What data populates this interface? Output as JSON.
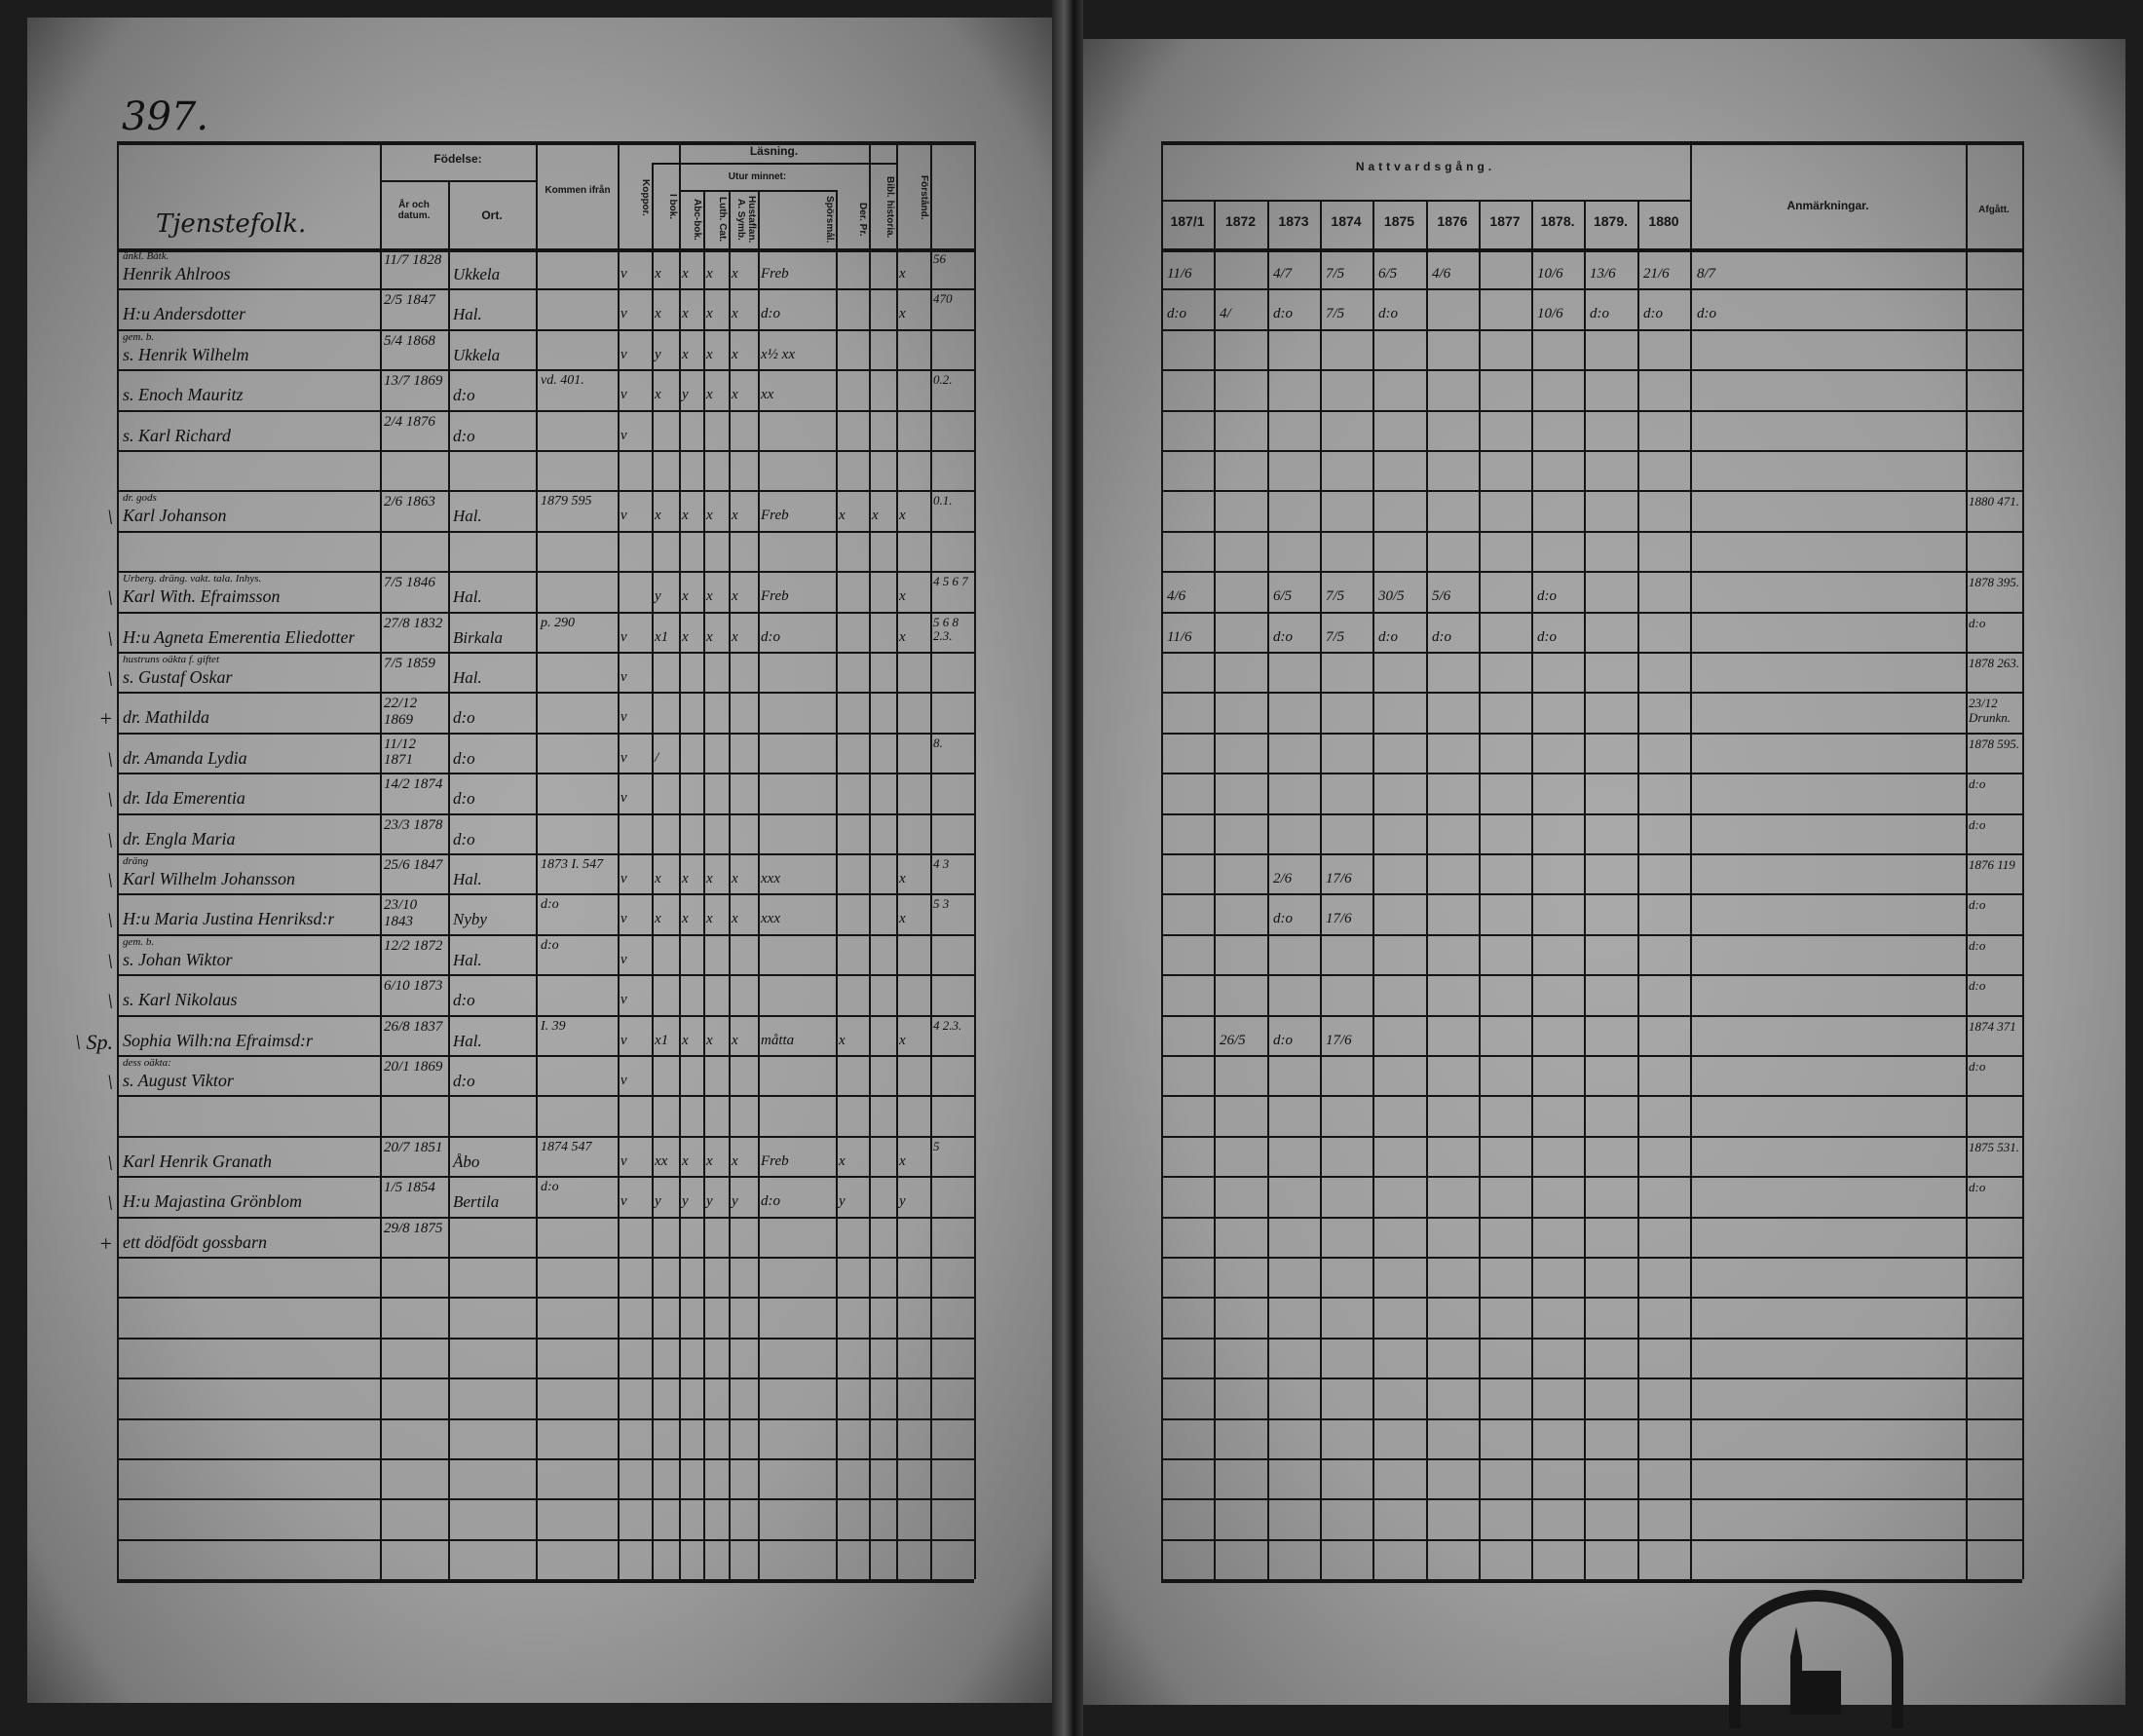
{
  "page_number": "397.",
  "left_headers": {
    "section": "Tjenstefolk.",
    "fodelse": "Födelse:",
    "ar": "År och datum.",
    "ort": "Ort.",
    "kommen_fran": "Kommen ifrån",
    "koppor": "Koppor.",
    "lasning": "Läsning.",
    "i_bok": "I bok.",
    "utur_minnet": "Utur minnet:",
    "abc": "Abc-bok.",
    "luth": "Luth. Cat.",
    "hust": "Hustaflan. A. Symb.",
    "sporsmal": "Spörsmål.",
    "der": "Der. Pr.",
    "bibl": "Bibl. historia.",
    "forstand": "Förstånd."
  },
  "right_headers": {
    "nattvard": "Nattvardsgång.",
    "years": [
      "187/1",
      "1872",
      "1873",
      "1874",
      "1875",
      "1876",
      "1877",
      "1878.",
      "1879.",
      "1880"
    ],
    "anmarkningar": "Anmärkningar.",
    "afgatt": "Afgått."
  },
  "rows": [
    {
      "margin": "",
      "note": "änkl. Båtk.",
      "name": "Henrik Ahlroos",
      "date": "11/7 1828",
      "place": "Ukkela",
      "from": "",
      "marks": [
        "v",
        "x",
        "x",
        "x",
        "x",
        "Freb",
        "",
        "",
        "x",
        "56"
      ],
      "years": [
        "11/6",
        "",
        "4/7",
        "7/5",
        "6/5",
        "4/6",
        "",
        "10/6",
        "13/6",
        "21/6"
      ],
      "anm": "8/7",
      "afgatt": ""
    },
    {
      "margin": "",
      "note": "",
      "name": "H:u Andersdotter",
      "date": "2/5 1847",
      "place": "Hal.",
      "from": "",
      "marks": [
        "v",
        "x",
        "x",
        "x",
        "x",
        "d:o",
        "",
        "",
        "x",
        "470"
      ],
      "years": [
        "d:o",
        "4/",
        "d:o",
        "7/5",
        "d:o",
        "",
        "",
        "10/6",
        "d:o",
        "d:o"
      ],
      "anm": "d:o",
      "afgatt": ""
    },
    {
      "margin": "",
      "note": "gem. b.",
      "name": "s. Henrik Wilhelm",
      "date": "5/4 1868",
      "place": "Ukkela",
      "from": "",
      "marks": [
        "v",
        "y",
        "x",
        "x",
        "x",
        "x½ xx",
        "",
        "",
        "",
        ""
      ],
      "years": [
        "",
        "",
        "",
        "",
        "",
        "",
        "",
        "",
        "",
        ""
      ],
      "anm": "",
      "afgatt": ""
    },
    {
      "margin": "",
      "note": "",
      "name": "s. Enoch Mauritz",
      "date": "13/7 1869",
      "place": "d:o",
      "from": "vd. 401.",
      "marks": [
        "v",
        "x",
        "y",
        "x",
        "x",
        "xx",
        "",
        "",
        "",
        "0.2."
      ],
      "years": [
        "",
        "",
        "",
        "",
        "",
        "",
        "",
        "",
        "",
        ""
      ],
      "anm": "",
      "afgatt": ""
    },
    {
      "margin": "",
      "note": "",
      "name": "s. Karl Richard",
      "date": "2/4 1876",
      "place": "d:o",
      "from": "",
      "marks": [
        "v",
        "",
        "",
        "",
        "",
        "",
        "",
        "",
        "",
        ""
      ],
      "years": [
        "",
        "",
        "",
        "",
        "",
        "",
        "",
        "",
        "",
        ""
      ],
      "anm": "",
      "afgatt": ""
    },
    {},
    {
      "margin": "\\",
      "note": "dr. gods",
      "name": "Karl Johanson",
      "date": "2/6 1863",
      "place": "Hal.",
      "from": "1879 595",
      "marks": [
        "v",
        "x",
        "x",
        "x",
        "x",
        "Freb",
        "x",
        "x",
        "x",
        "0.1."
      ],
      "years": [
        "",
        "",
        "",
        "",
        "",
        "",
        "",
        "",
        "",
        ""
      ],
      "anm": "",
      "afgatt": "1880 471."
    },
    {},
    {
      "margin": "\\",
      "note": "Urberg. dräng. vakt. tala. Inhys.",
      "name": "Karl With. Efraimsson",
      "date": "7/5 1846",
      "place": "Hal.",
      "from": "",
      "marks": [
        "",
        "y",
        "x",
        "x",
        "x",
        "Freb",
        "",
        "",
        "x",
        "4 5 6 7"
      ],
      "years": [
        "4/6",
        "",
        "6/5",
        "7/5",
        "30/5",
        "5/6",
        "",
        "d:o",
        "",
        ""
      ],
      "anm": "",
      "afgatt": "1878 395."
    },
    {
      "margin": "\\",
      "note": "",
      "name": "H:u Agneta Emerentia Eliedotter",
      "date": "27/8 1832",
      "place": "Birkala",
      "from": "p. 290",
      "marks": [
        "v",
        "x1",
        "x",
        "x",
        "x",
        "d:o",
        "",
        "",
        "x",
        "5 6 8 2.3."
      ],
      "years": [
        "11/6",
        "",
        "d:o",
        "7/5",
        "d:o",
        "d:o",
        "",
        "d:o",
        "",
        ""
      ],
      "anm": "",
      "afgatt": "d:o"
    },
    {
      "margin": "\\",
      "note": "hustruns oäkta f. giftet",
      "name": "s. Gustaf Oskar",
      "date": "7/5 1859",
      "place": "Hal.",
      "from": "",
      "marks": [
        "v",
        "",
        "",
        "",
        "",
        "",
        "",
        "",
        "",
        ""
      ],
      "years": [
        "",
        "",
        "",
        "",
        "",
        "",
        "",
        "",
        "",
        ""
      ],
      "anm": "",
      "afgatt": "1878 263."
    },
    {
      "margin": "+",
      "note": "",
      "name": "dr. Mathilda",
      "date": "22/12 1869",
      "place": "d:o",
      "from": "",
      "marks": [
        "v",
        "",
        "",
        "",
        "",
        "",
        "",
        "",
        "",
        ""
      ],
      "years": [
        "",
        "",
        "",
        "",
        "",
        "",
        "",
        "",
        "",
        ""
      ],
      "anm": "",
      "afgatt": "23/12 Drunkn."
    },
    {
      "margin": "\\",
      "note": "",
      "name": "dr. Amanda Lydia",
      "date": "11/12 1871",
      "place": "d:o",
      "from": "",
      "marks": [
        "v",
        "/",
        "",
        "",
        "",
        "",
        "",
        "",
        "",
        "8."
      ],
      "years": [
        "",
        "",
        "",
        "",
        "",
        "",
        "",
        "",
        "",
        ""
      ],
      "anm": "",
      "afgatt": "1878 595."
    },
    {
      "margin": "\\",
      "note": "",
      "name": "dr. Ida Emerentia",
      "date": "14/2 1874",
      "place": "d:o",
      "from": "",
      "marks": [
        "v",
        "",
        "",
        "",
        "",
        "",
        "",
        "",
        "",
        ""
      ],
      "years": [
        "",
        "",
        "",
        "",
        "",
        "",
        "",
        "",
        "",
        ""
      ],
      "anm": "",
      "afgatt": "d:o"
    },
    {
      "margin": "\\",
      "note": "",
      "name": "dr. Engla Maria",
      "date": "23/3 1878",
      "place": "d:o",
      "from": "",
      "marks": [
        "",
        "",
        "",
        "",
        "",
        "",
        "",
        "",
        "",
        ""
      ],
      "years": [
        "",
        "",
        "",
        "",
        "",
        "",
        "",
        "",
        "",
        ""
      ],
      "anm": "",
      "afgatt": "d:o"
    },
    {
      "margin": "\\",
      "note": "dräng",
      "name": "Karl Wilhelm Johansson",
      "date": "25/6 1847",
      "place": "Hal.",
      "from": "1873 I. 547",
      "marks": [
        "v",
        "x",
        "x",
        "x",
        "x",
        "xxx",
        "",
        "",
        "x",
        "4 3"
      ],
      "years": [
        "",
        "",
        "2/6",
        "17/6",
        "",
        "",
        "",
        "",
        "",
        ""
      ],
      "anm": "",
      "afgatt": "1876 119"
    },
    {
      "margin": "\\",
      "note": "",
      "name": "H:u Maria Justina Henriksd:r",
      "date": "23/10 1843",
      "place": "Nyby",
      "from": "d:o",
      "marks": [
        "v",
        "x",
        "x",
        "x",
        "x",
        "xxx",
        "",
        "",
        "x",
        "5 3"
      ],
      "years": [
        "",
        "",
        "d:o",
        "17/6",
        "",
        "",
        "",
        "",
        "",
        ""
      ],
      "anm": "",
      "afgatt": "d:o"
    },
    {
      "margin": "\\",
      "note": "gem. b.",
      "name": "s. Johan Wiktor",
      "date": "12/2 1872",
      "place": "Hal.",
      "from": "d:o",
      "marks": [
        "v",
        "",
        "",
        "",
        "",
        "",
        "",
        "",
        "",
        ""
      ],
      "years": [
        "",
        "",
        "",
        "",
        "",
        "",
        "",
        "",
        "",
        ""
      ],
      "anm": "",
      "afgatt": "d:o"
    },
    {
      "margin": "\\",
      "note": "",
      "name": "s. Karl Nikolaus",
      "date": "6/10 1873",
      "place": "d:o",
      "from": "",
      "marks": [
        "v",
        "",
        "",
        "",
        "",
        "",
        "",
        "",
        "",
        ""
      ],
      "years": [
        "",
        "",
        "",
        "",
        "",
        "",
        "",
        "",
        "",
        ""
      ],
      "anm": "",
      "afgatt": "d:o"
    },
    {
      "margin": "\\ Sp.",
      "note": "",
      "name": "Sophia Wilh:na Efraimsd:r",
      "date": "26/8 1837",
      "place": "Hal.",
      "from": "I. 39",
      "marks": [
        "v",
        "x1",
        "x",
        "x",
        "x",
        "måtta",
        "x",
        "",
        "x",
        "4 2.3."
      ],
      "years": [
        "",
        "26/5",
        "d:o",
        "17/6",
        "",
        "",
        "",
        "",
        "",
        ""
      ],
      "anm": "",
      "afgatt": "1874 371"
    },
    {
      "margin": "\\",
      "note": "dess oäkta:",
      "name": "s. August Viktor",
      "date": "20/1 1869",
      "place": "d:o",
      "from": "",
      "marks": [
        "v",
        "",
        "",
        "",
        "",
        "",
        "",
        "",
        "",
        ""
      ],
      "years": [
        "",
        "",
        "",
        "",
        "",
        "",
        "",
        "",
        "",
        ""
      ],
      "anm": "",
      "afgatt": "d:o"
    },
    {},
    {
      "margin": "\\",
      "note": "",
      "name": "Karl Henrik Granath",
      "date": "20/7 1851",
      "place": "Åbo",
      "from": "1874 547",
      "marks": [
        "v",
        "xx",
        "x",
        "x",
        "x",
        "Freb",
        "x",
        "",
        "x",
        "5"
      ],
      "years": [
        "",
        "",
        "",
        "",
        "",
        "",
        "",
        "",
        "",
        ""
      ],
      "anm": "",
      "afgatt": "1875 531."
    },
    {
      "margin": "\\",
      "note": "",
      "name": "H:u Majastina Grönblom",
      "date": "1/5 1854",
      "place": "Bertila",
      "from": "d:o",
      "marks": [
        "v",
        "y",
        "y",
        "y",
        "y",
        "d:o",
        "y",
        "",
        "y",
        ""
      ],
      "years": [
        "",
        "",
        "",
        "",
        "",
        "",
        "",
        "",
        "",
        ""
      ],
      "anm": "",
      "afgatt": "d:o"
    },
    {
      "margin": "+",
      "note": "",
      "name": "ett dödfödt gossbarn",
      "date": "29/8 1875",
      "place": "",
      "from": "",
      "marks": [
        "",
        "",
        "",
        "",
        "",
        "",
        "",
        "",
        "",
        ""
      ],
      "years": [
        "",
        "",
        "",
        "",
        "",
        "",
        "",
        "",
        "",
        ""
      ],
      "anm": "",
      "afgatt": ""
    },
    {},
    {},
    {},
    {},
    {},
    {},
    {},
    {}
  ],
  "colors": {
    "paper": "#9d9d9d",
    "ink": "#141414",
    "background": "#1c1c1c"
  },
  "stamp": {
    "type": "church-seal",
    "text": "illegible"
  }
}
